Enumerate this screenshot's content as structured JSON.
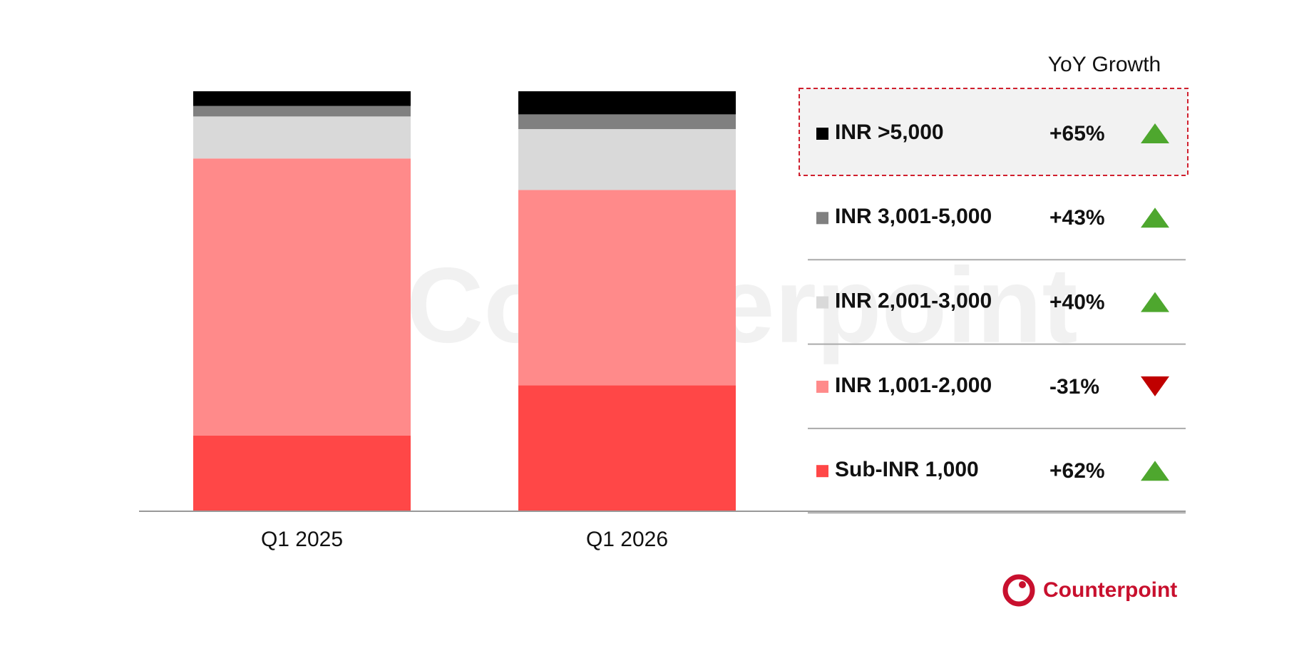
{
  "chart_data": {
    "type": "bar",
    "stacked": true,
    "categories": [
      "Q1 2025",
      "Q1 2026"
    ],
    "ylim": [
      0,
      100
    ],
    "legend_title": "YoY Growth",
    "brand": "Counterpoint",
    "series": [
      {
        "name": "Sub-INR 1,000",
        "color": "#ff4747",
        "values": [
          18,
          30
        ],
        "growth": {
          "value": 62,
          "label": "+62%"
        }
      },
      {
        "name": "INR 1,001-2,000",
        "color": "#ff8a8a",
        "values": [
          66,
          46.5
        ],
        "growth": {
          "value": -31,
          "label": "-31%"
        }
      },
      {
        "name": "INR 2,001-3,000",
        "color": "#d9d9d9",
        "values": [
          10,
          14.5
        ],
        "growth": {
          "value": 40,
          "label": "+40%"
        }
      },
      {
        "name": "INR 3,001-5,000",
        "color": "#808080",
        "values": [
          2.5,
          3.5
        ],
        "growth": {
          "value": 43,
          "label": "+43%"
        }
      },
      {
        "name": "INR >5,000",
        "color": "#000000",
        "values": [
          3.5,
          5.5
        ],
        "growth": {
          "value": 65,
          "label": "+65%"
        }
      }
    ]
  }
}
